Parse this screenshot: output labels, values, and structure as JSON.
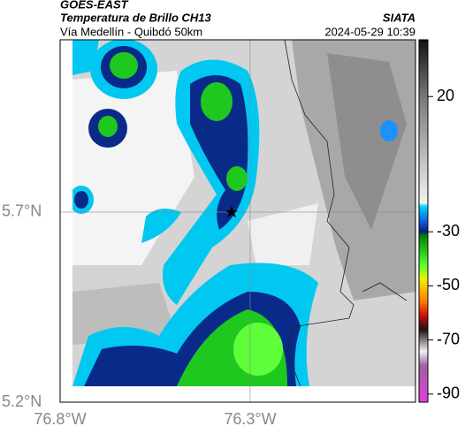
{
  "header": {
    "title": "GOES-EAST",
    "subtitle": "Temperatura de Brillo CH13",
    "location": "Vía Medellín - Quibdó 50km",
    "source": "SIATA",
    "timestamp": "2024-05-29 10:39"
  },
  "map": {
    "lonlim": [
      -76.8,
      -75.865
    ],
    "latlim": [
      5.2,
      6.153
    ],
    "lon_ticks": [
      {
        "value": -76.8,
        "label": "76.8°W"
      },
      {
        "value": -76.3,
        "label": "76.3°W"
      }
    ],
    "lat_ticks": [
      {
        "value": 5.7,
        "label": "5.7°N"
      },
      {
        "value": 5.2,
        "label": "5.2°N"
      }
    ],
    "colorbar": {
      "range": [
        -93,
        41
      ],
      "ticks": [
        20,
        -30,
        -50,
        -70,
        -90
      ]
    }
  }
}
